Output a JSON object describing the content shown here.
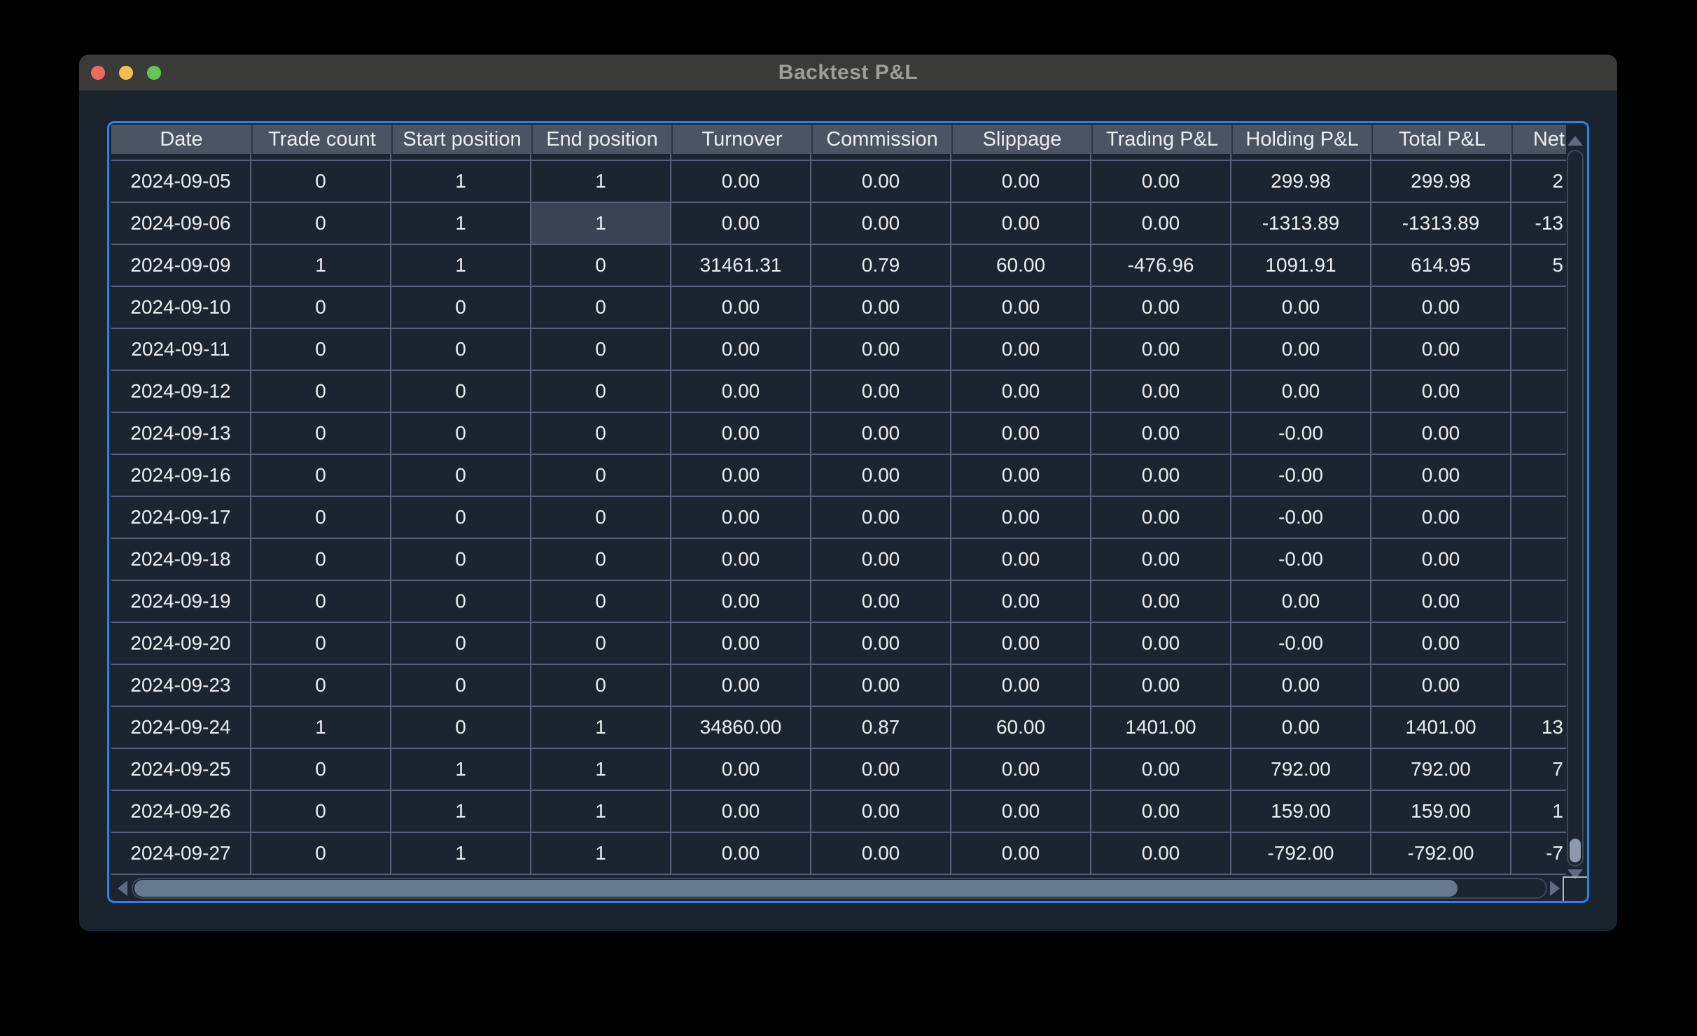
{
  "window": {
    "title": "Backtest P&L"
  },
  "table": {
    "columns": [
      "Date",
      "Trade count",
      "Start position",
      "End position",
      "Turnover",
      "Commission",
      "Slippage",
      "Trading P&L",
      "Holding P&L",
      "Total P&L",
      "Net"
    ],
    "last_column_clipped": true,
    "rows": [
      [
        "2024-09-05",
        "0",
        "1",
        "1",
        "0.00",
        "0.00",
        "0.00",
        "0.00",
        "299.98",
        "299.98",
        "2"
      ],
      [
        "2024-09-06",
        "0",
        "1",
        "1",
        "0.00",
        "0.00",
        "0.00",
        "0.00",
        "-1313.89",
        "-1313.89",
        "-13"
      ],
      [
        "2024-09-09",
        "1",
        "1",
        "0",
        "31461.31",
        "0.79",
        "60.00",
        "-476.96",
        "1091.91",
        "614.95",
        "5"
      ],
      [
        "2024-09-10",
        "0",
        "0",
        "0",
        "0.00",
        "0.00",
        "0.00",
        "0.00",
        "0.00",
        "0.00",
        ""
      ],
      [
        "2024-09-11",
        "0",
        "0",
        "0",
        "0.00",
        "0.00",
        "0.00",
        "0.00",
        "0.00",
        "0.00",
        ""
      ],
      [
        "2024-09-12",
        "0",
        "0",
        "0",
        "0.00",
        "0.00",
        "0.00",
        "0.00",
        "0.00",
        "0.00",
        ""
      ],
      [
        "2024-09-13",
        "0",
        "0",
        "0",
        "0.00",
        "0.00",
        "0.00",
        "0.00",
        "-0.00",
        "0.00",
        ""
      ],
      [
        "2024-09-16",
        "0",
        "0",
        "0",
        "0.00",
        "0.00",
        "0.00",
        "0.00",
        "-0.00",
        "0.00",
        ""
      ],
      [
        "2024-09-17",
        "0",
        "0",
        "0",
        "0.00",
        "0.00",
        "0.00",
        "0.00",
        "-0.00",
        "0.00",
        ""
      ],
      [
        "2024-09-18",
        "0",
        "0",
        "0",
        "0.00",
        "0.00",
        "0.00",
        "0.00",
        "-0.00",
        "0.00",
        ""
      ],
      [
        "2024-09-19",
        "0",
        "0",
        "0",
        "0.00",
        "0.00",
        "0.00",
        "0.00",
        "0.00",
        "0.00",
        ""
      ],
      [
        "2024-09-20",
        "0",
        "0",
        "0",
        "0.00",
        "0.00",
        "0.00",
        "0.00",
        "-0.00",
        "0.00",
        ""
      ],
      [
        "2024-09-23",
        "0",
        "0",
        "0",
        "0.00",
        "0.00",
        "0.00",
        "0.00",
        "0.00",
        "0.00",
        ""
      ],
      [
        "2024-09-24",
        "1",
        "0",
        "1",
        "34860.00",
        "0.87",
        "60.00",
        "1401.00",
        "0.00",
        "1401.00",
        "13"
      ],
      [
        "2024-09-25",
        "0",
        "1",
        "1",
        "0.00",
        "0.00",
        "0.00",
        "0.00",
        "792.00",
        "792.00",
        "7"
      ],
      [
        "2024-09-26",
        "0",
        "1",
        "1",
        "0.00",
        "0.00",
        "0.00",
        "0.00",
        "159.00",
        "159.00",
        "1"
      ],
      [
        "2024-09-27",
        "0",
        "1",
        "1",
        "0.00",
        "0.00",
        "0.00",
        "0.00",
        "-792.00",
        "-792.00",
        "-7"
      ]
    ],
    "selected_cell": {
      "row_index": 1,
      "column_index": 3
    }
  },
  "colors": {
    "focus_border": "#2d7ff0",
    "header_bg": "#4a5462",
    "row_bg": "#1b2531",
    "gridline": "#566077",
    "selected_cell_bg": "#3a4354",
    "titlebar_bg": "#3a3a38",
    "window_bg": "#19232e",
    "text": "#e9edf2",
    "traffic_red": "#ec6a5e",
    "traffic_yellow": "#f5bf4f",
    "traffic_green": "#62c554",
    "scrollbar_thumb_horizontal": "#67798f",
    "scrollbar_thumb_vertical": "#8b99ab"
  }
}
